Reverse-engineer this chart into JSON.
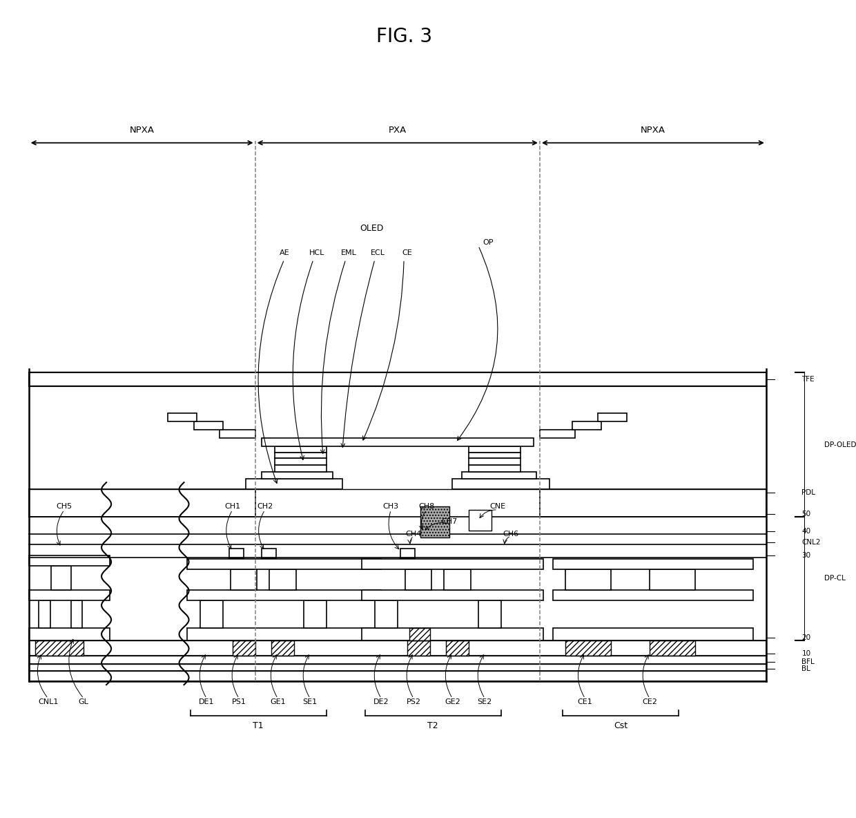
{
  "title": "FIG. 3",
  "bg_color": "#ffffff",
  "line_color": "#000000",
  "fig_width": 12.4,
  "fig_height": 11.84,
  "labels": {
    "title": "FIG. 3",
    "NPXA_left": "NPXA",
    "PXA": "PXA",
    "NPXA_right": "NPXA",
    "OLED": "OLED",
    "AE": "AE",
    "HCL": "HCL",
    "EML": "EML",
    "ECL": "ECL",
    "CE": "CE",
    "OP": "OP",
    "TFE": "TFE",
    "DP_OLED": "DP-OLED",
    "PDL": "PDL",
    "CH5": "CH5",
    "CH1": "CH1",
    "CH2": "CH2",
    "CH3": "CH3",
    "CH8": "CH8",
    "CNE": "CNE",
    "CH7": "CH7",
    "CH4": "CH4",
    "CH6": "CH6",
    "CNL2": "CNL2",
    "DP_CL": "DP-CL",
    "n50": "50",
    "n40": "40",
    "n30": "30",
    "n20": "20",
    "n10": "10",
    "BFL": "BFL",
    "BL": "BL",
    "CNL1": "CNL1",
    "GL": "GL",
    "DE1": "DE1",
    "PS1": "PS1",
    "GE1": "GE1",
    "SE1": "SE1",
    "DE2": "DE2",
    "PS2": "PS2",
    "GE2": "GE2",
    "SE2": "SE2",
    "CE1": "CE1",
    "CE2": "CE2",
    "T1": "T1",
    "T2": "T2",
    "Cst": "Cst"
  }
}
